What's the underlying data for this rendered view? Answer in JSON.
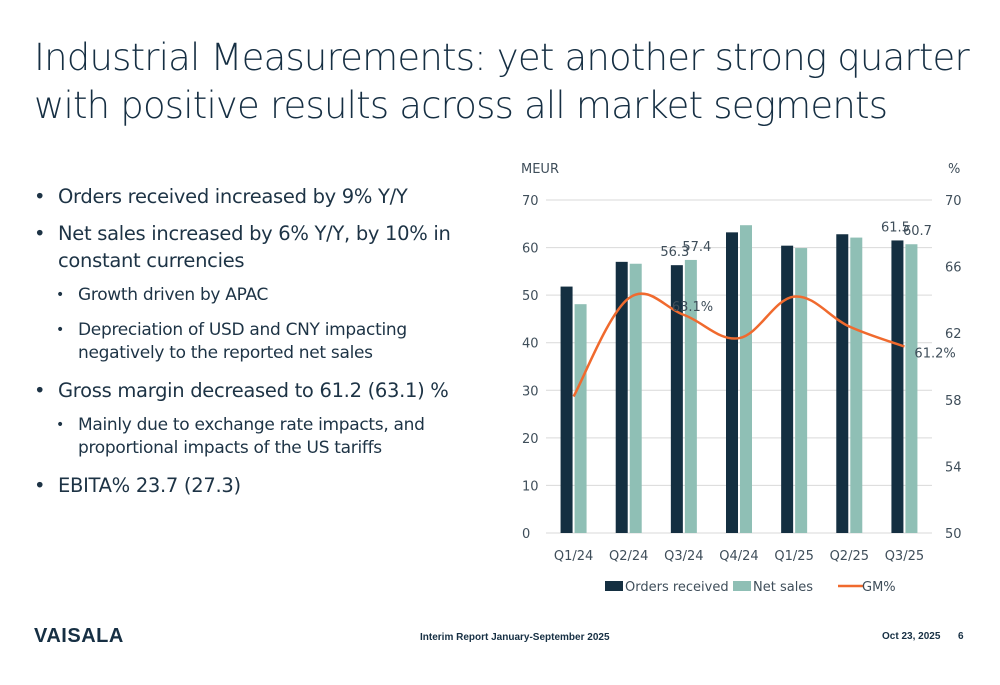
{
  "title": {
    "line1": "Industrial Measurements: yet another strong quarter",
    "line2": "with positive results across all market segments"
  },
  "bullets": [
    {
      "text": "Orders received increased by 9% Y/Y"
    },
    {
      "text": "Net sales increased by 6% Y/Y, by 10% in constant currencies"
    },
    {
      "text": "Growth driven by APAC"
    },
    {
      "text": "Depreciation of USD and CNY impacting negatively to the reported net sales"
    },
    {
      "text": "Gross margin decreased to 61.2 (63.1) %"
    },
    {
      "text": "Mainly due to exchange rate impacts, and proportional impacts of the US tariffs"
    },
    {
      "text": "EBITA% 23.7 (27.3)"
    }
  ],
  "chart_data": {
    "type": "bar",
    "categories": [
      "Q1/24",
      "Q2/24",
      "Q3/24",
      "Q4/24",
      "Q1/25",
      "Q2/25",
      "Q3/25"
    ],
    "series": [
      {
        "name": "Orders received",
        "type": "bar",
        "axis": "left",
        "color": "#142f41",
        "values": [
          51.8,
          57.0,
          56.3,
          63.2,
          60.4,
          62.8,
          61.5
        ]
      },
      {
        "name": "Net sales",
        "type": "bar",
        "axis": "left",
        "color": "#8fbfb5",
        "values": [
          48.1,
          56.6,
          57.4,
          64.7,
          59.9,
          62.1,
          60.7
        ]
      },
      {
        "name": "GM%",
        "type": "line",
        "axis": "right",
        "color": "#f06a2e",
        "values": [
          58.2,
          64.1,
          63.1,
          61.7,
          64.2,
          62.4,
          61.2
        ]
      }
    ],
    "data_labels": [
      {
        "series": "Orders received",
        "category": "Q3/24",
        "text": "56.3"
      },
      {
        "series": "Net sales",
        "category": "Q3/24",
        "text": "57.4"
      },
      {
        "series": "Orders received",
        "category": "Q3/25",
        "text": "61.5"
      },
      {
        "series": "Net sales",
        "category": "Q3/25",
        "text": "60.7"
      },
      {
        "series": "GM%",
        "category": "Q3/24",
        "text": "63.1%"
      },
      {
        "series": "GM%",
        "category": "Q3/25",
        "text": "61.2%"
      }
    ],
    "ylabel": "MEUR",
    "y2label": "%",
    "ylim": [
      0,
      70
    ],
    "yticks": [
      0,
      10,
      20,
      30,
      40,
      50,
      60,
      70
    ],
    "y2lim": [
      50,
      70
    ],
    "y2ticks": [
      50,
      54,
      58,
      62,
      66,
      70
    ],
    "grid": true,
    "legend_position": "bottom"
  },
  "footer": {
    "logo": "VAISALA",
    "report": "Interim Report January-September 2025",
    "date": "Oct 23, 2025",
    "page": "6"
  }
}
